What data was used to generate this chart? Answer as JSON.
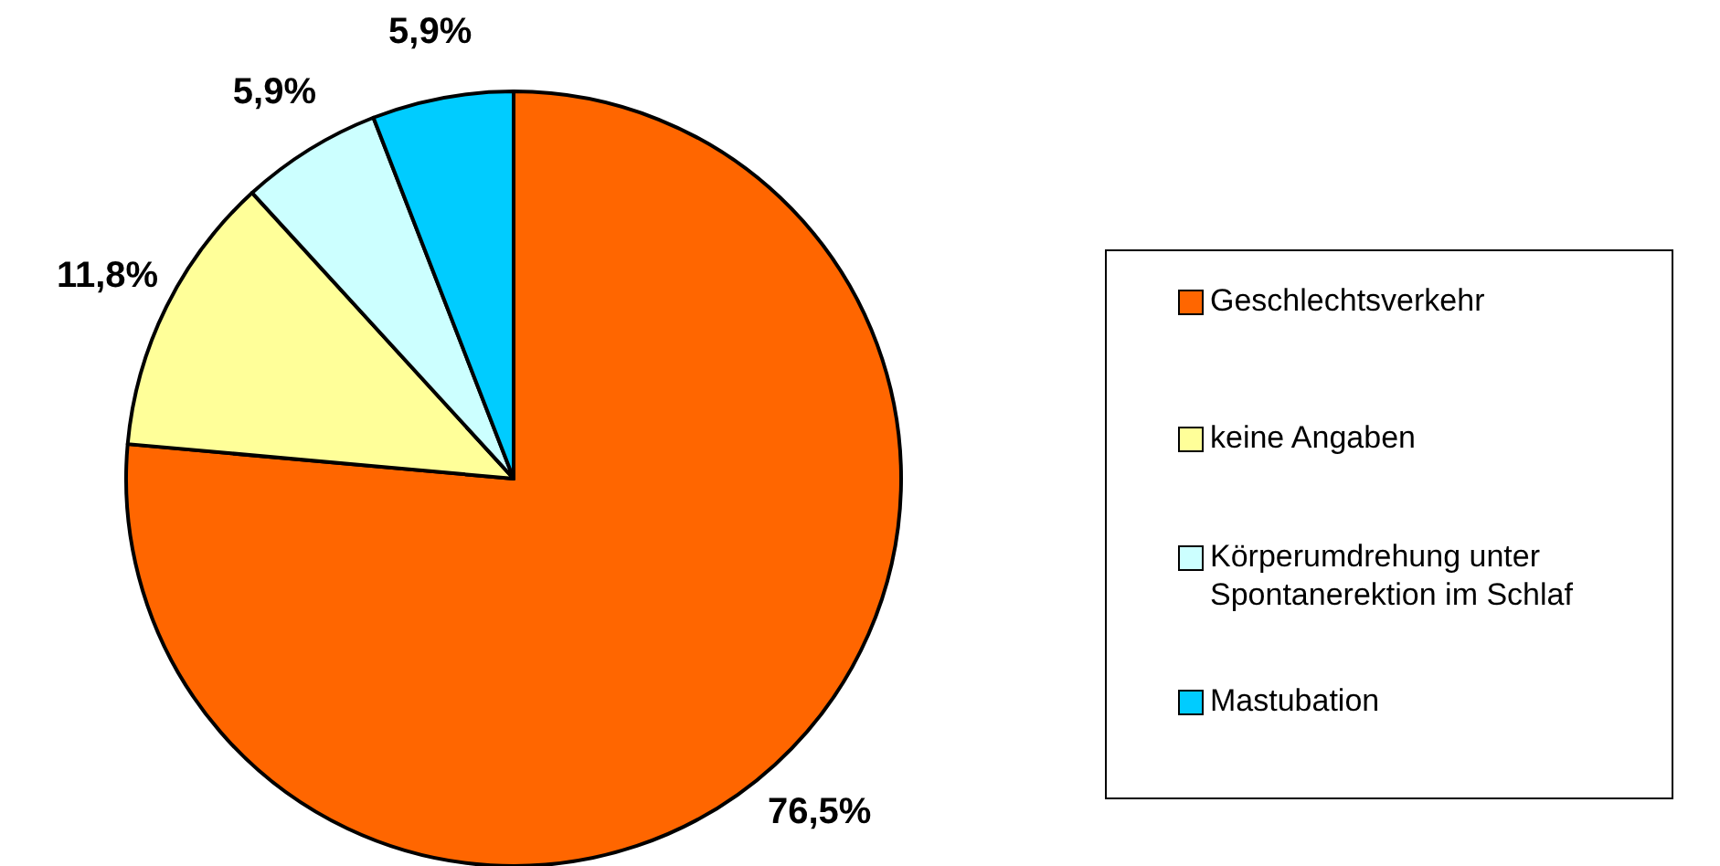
{
  "chart_data": {
    "type": "pie",
    "categories": [
      "Geschlechtsverkehr",
      "keine Angaben",
      "Körperumdrehung unter Spontanerektion im Schlaf",
      "Mastubation"
    ],
    "values": [
      76.5,
      11.8,
      5.9,
      5.9
    ],
    "value_labels": [
      "76,5%",
      "11,8%",
      "5,9%",
      "5,9%"
    ],
    "colors": [
      "#ff6600",
      "#ffff99",
      "#ccffff",
      "#00ccff"
    ],
    "legend": "right"
  }
}
